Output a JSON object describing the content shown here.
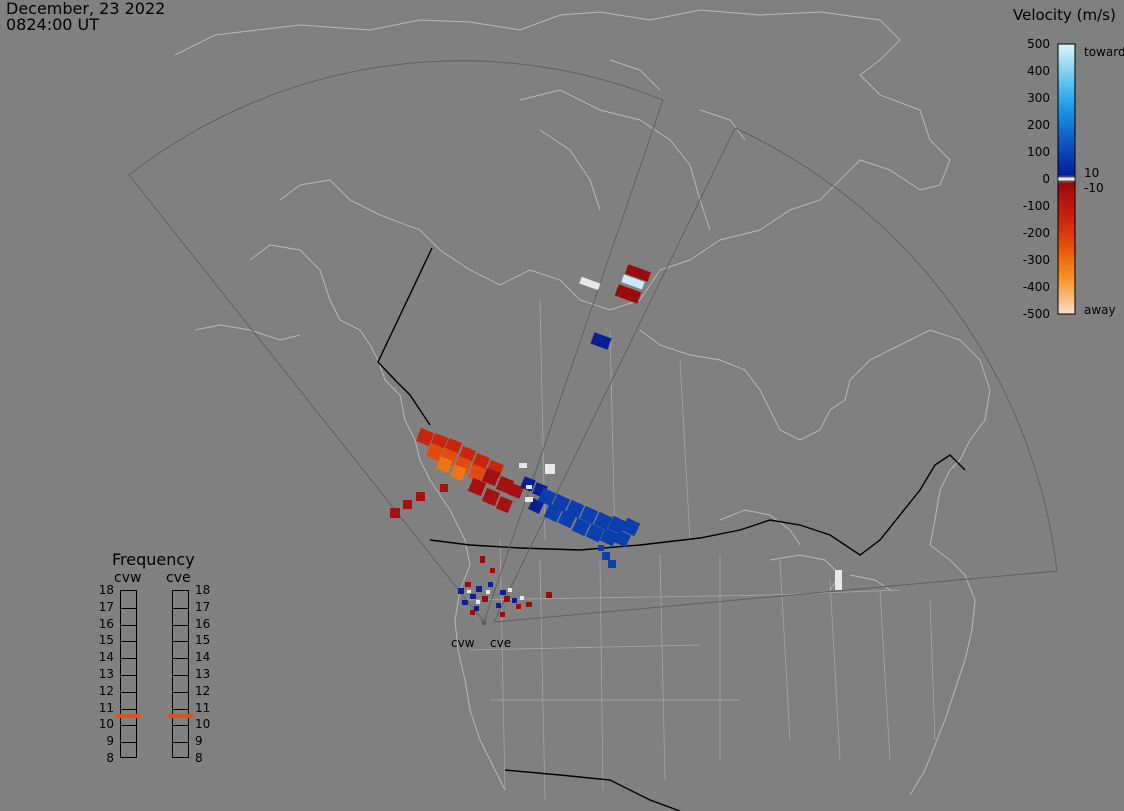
{
  "header": {
    "date": "December, 23 2022",
    "time": "0824:00 UT"
  },
  "colorbar": {
    "title": "Velocity (m/s)",
    "ticks": [
      "500",
      "400",
      "300",
      "200",
      "100",
      "0",
      "-100",
      "-200",
      "-300",
      "-400",
      "-500"
    ],
    "toward_label": "toward",
    "away_label": "away",
    "pos_small": "10",
    "neg_small": "-10",
    "stops": [
      "#dff3fb",
      "#a9dff4",
      "#61c2ee",
      "#1b98e6",
      "#0f63c8",
      "#063db0",
      "#02209e",
      "#0a1590",
      "#e8e8e8",
      "#900a0a",
      "#a50f0f",
      "#c21c0c",
      "#d9380c",
      "#ee6010",
      "#f58f1f",
      "#f9bb7d",
      "#fde0c8"
    ]
  },
  "frequency": {
    "title": "Frequency",
    "columns": [
      {
        "name": "cvw",
        "active": "11"
      },
      {
        "name": "cve",
        "active": "11"
      }
    ],
    "levels": [
      "18",
      "17",
      "16",
      "15",
      "14",
      "13",
      "12",
      "11",
      "10",
      "9",
      "8"
    ],
    "marker_color": "#e0501a"
  },
  "radar_sites": [
    {
      "name": "cvw"
    },
    {
      "name": "cve"
    }
  ],
  "map_colors": {
    "background": "#808080",
    "coast": "#b9b9b9",
    "border": "#000000",
    "fov": "#5e5e5e"
  }
}
